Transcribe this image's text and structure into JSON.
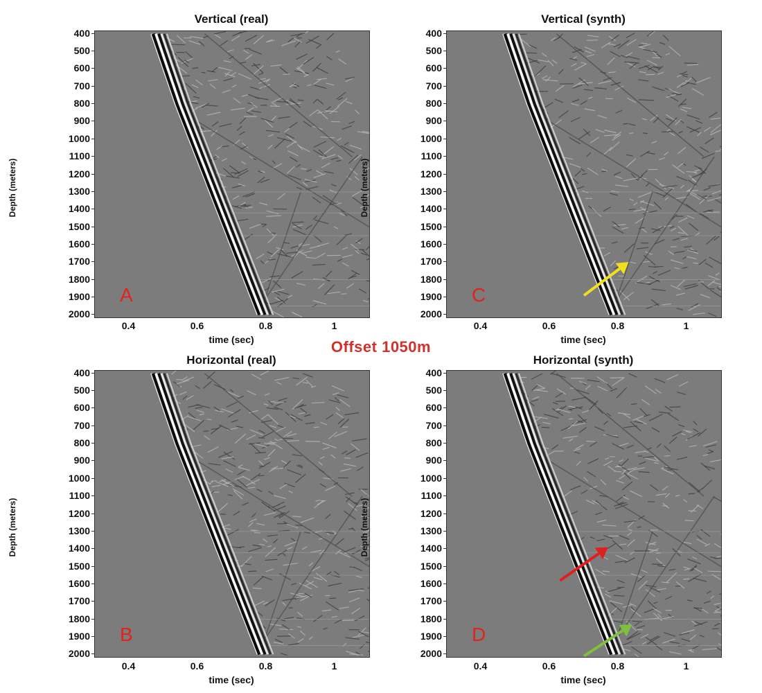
{
  "center_label": "Offset 1050m",
  "panels": [
    {
      "id": "A",
      "title": "Vertical (real)",
      "letter": "A",
      "xlabel": "time (sec)",
      "ylabel": "Depth (meters)",
      "arrows": []
    },
    {
      "id": "C",
      "title": "Vertical (synth)",
      "letter": "C",
      "xlabel": "time (sec)",
      "ylabel": "Depth (meters)",
      "arrows": [
        {
          "color": "#f0e020",
          "from": [
            0.7,
            1890
          ],
          "to": [
            0.83,
            1700
          ]
        }
      ]
    },
    {
      "id": "B",
      "title": "Horizontal (real)",
      "letter": "B",
      "xlabel": "time (sec)",
      "ylabel": "Depth (meters)",
      "arrows": []
    },
    {
      "id": "D",
      "title": "Horizontal (synth)",
      "letter": "D",
      "xlabel": "time (sec)",
      "ylabel": "Depth (meters)",
      "arrows": [
        {
          "color": "#e02020",
          "from": [
            0.63,
            1580
          ],
          "to": [
            0.77,
            1390
          ]
        },
        {
          "color": "#80c040",
          "from": [
            0.7,
            2010
          ],
          "to": [
            0.84,
            1830
          ]
        }
      ]
    }
  ],
  "y_ticks": [
    400,
    500,
    600,
    700,
    800,
    900,
    1000,
    1100,
    1200,
    1300,
    1400,
    1500,
    1600,
    1700,
    1800,
    1900,
    2000
  ],
  "x_ticks": [
    {
      "value": 0.4,
      "label": "0.4"
    },
    {
      "value": 0.6,
      "label": "0.6"
    },
    {
      "value": 0.8,
      "label": "0.8"
    },
    {
      "value": 1.0,
      "label": "1"
    }
  ],
  "chart_data": {
    "type": "heatmap",
    "xlim": [
      0.3,
      1.1
    ],
    "ylim": [
      2000,
      400
    ],
    "first_arrival": {
      "depth": [
        400,
        800,
        1200,
        1600,
        2000
      ],
      "time": [
        0.47,
        0.54,
        0.62,
        0.7,
        0.78
      ]
    }
  }
}
